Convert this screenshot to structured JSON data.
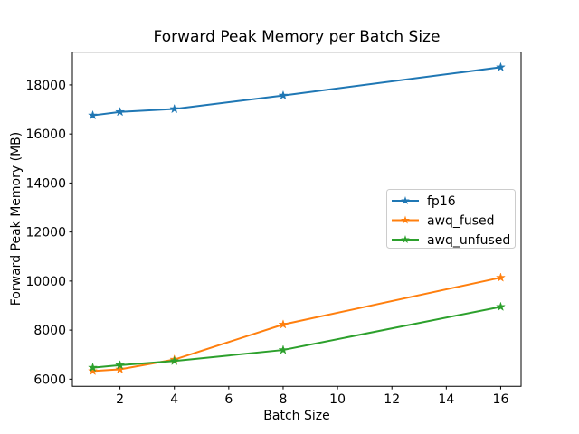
{
  "chart_data": {
    "type": "line",
    "title": "Forward Peak Memory per Batch Size",
    "xlabel": "Batch Size",
    "ylabel": "Forward Peak Memory (MB)",
    "x": [
      1,
      2,
      4,
      8,
      16
    ],
    "series": [
      {
        "name": "fp16",
        "color": "#1f77b4",
        "values": [
          16760,
          16900,
          17020,
          17570,
          18720
        ]
      },
      {
        "name": "awq_fused",
        "color": "#ff7f0e",
        "values": [
          6330,
          6400,
          6800,
          8230,
          10140
        ]
      },
      {
        "name": "awq_unfused",
        "color": "#2ca02c",
        "values": [
          6470,
          6570,
          6740,
          7190,
          8950
        ]
      }
    ],
    "marker": "star",
    "line_width": 2,
    "xlim": [
      0.25,
      16.75
    ],
    "ylim": [
      5710,
      19340
    ],
    "xticks": [
      2,
      4,
      6,
      8,
      10,
      12,
      14,
      16
    ],
    "yticks": [
      6000,
      8000,
      10000,
      12000,
      14000,
      16000,
      18000
    ],
    "grid": false,
    "legend_position": "center-right",
    "spine_color": "#000000",
    "background_color": "#ffffff"
  }
}
